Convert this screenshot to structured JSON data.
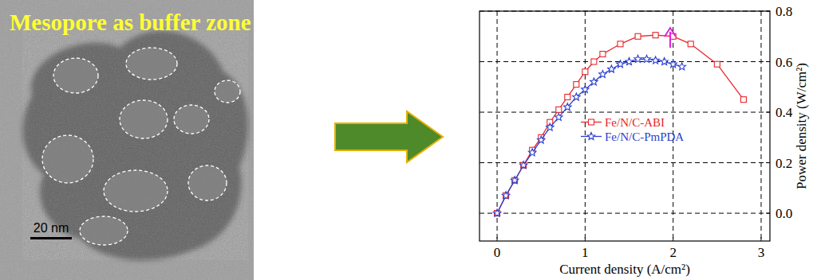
{
  "image": {
    "caption": "Mesopore as buffer zone",
    "scale_bar": "20 nm"
  },
  "chart_data": {
    "type": "line",
    "x_label": "Current density (A/cm²)",
    "y_label": "Power density (W/cm²)",
    "xlim": [
      -0.2,
      3.1
    ],
    "ylim": [
      -0.11,
      0.8
    ],
    "xticks": [
      0,
      1,
      2,
      3
    ],
    "yticks": [
      {
        "value": 0,
        "label": "0.0"
      },
      {
        "value": 0.2,
        "label": "0.2"
      },
      {
        "value": 0.4,
        "label": "0.4"
      },
      {
        "value": 0.6,
        "label": "0.6"
      },
      {
        "value": 0.8,
        "label": "0.8"
      }
    ],
    "grid": true,
    "legend": "center",
    "series": [
      {
        "name": "Fe/N/C-ABI",
        "color": "#e8262b",
        "marker": "square",
        "line_style": "solid",
        "x": [
          0,
          0.1,
          0.2,
          0.3,
          0.4,
          0.5,
          0.6,
          0.7,
          0.8,
          0.9,
          1.0,
          1.1,
          1.2,
          1.4,
          1.6,
          1.8,
          2.0,
          2.2,
          2.5,
          2.8
        ],
        "values": [
          0,
          0.07,
          0.13,
          0.19,
          0.25,
          0.3,
          0.36,
          0.41,
          0.46,
          0.51,
          0.56,
          0.6,
          0.63,
          0.67,
          0.7,
          0.705,
          0.7,
          0.67,
          0.59,
          0.45
        ]
      },
      {
        "name": "Fe/N/C-PmPDA",
        "color": "#2a3fd0",
        "marker": "star",
        "line_style": "solid",
        "x": [
          0,
          0.1,
          0.2,
          0.3,
          0.4,
          0.5,
          0.6,
          0.7,
          0.8,
          0.9,
          1.0,
          1.1,
          1.2,
          1.3,
          1.4,
          1.5,
          1.6,
          1.7,
          1.8,
          1.9,
          2.0,
          2.1
        ],
        "values": [
          0,
          0.07,
          0.13,
          0.19,
          0.24,
          0.29,
          0.34,
          0.38,
          0.42,
          0.46,
          0.49,
          0.52,
          0.55,
          0.57,
          0.59,
          0.6,
          0.61,
          0.61,
          0.605,
          0.6,
          0.59,
          0.58
        ]
      }
    ]
  }
}
